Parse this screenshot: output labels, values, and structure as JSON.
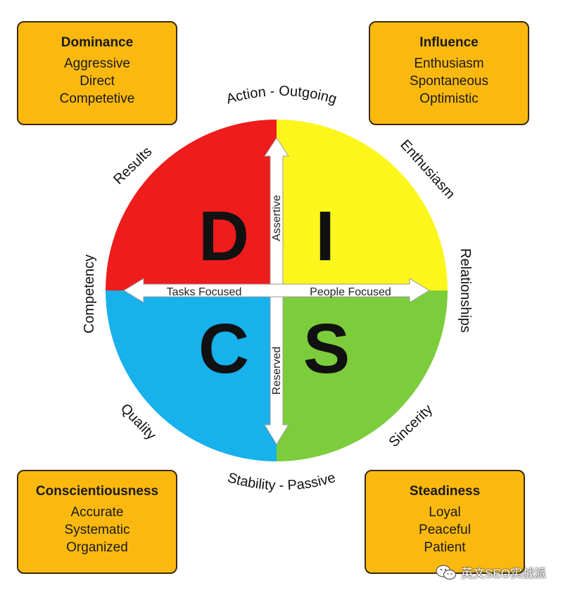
{
  "cards": {
    "dominance": {
      "title": "Dominance",
      "traits": [
        "Aggressive",
        "Direct",
        "Competetive"
      ]
    },
    "influence": {
      "title": "Influence",
      "traits": [
        "Enthusiasm",
        "Spontaneous",
        "Optimistic"
      ]
    },
    "conscientiousness": {
      "title": "Conscientiousness",
      "traits": [
        "Accurate",
        "Systematic",
        "Organized"
      ]
    },
    "steadiness": {
      "title": "Steadiness",
      "traits": [
        "Loyal",
        "Peaceful",
        "Patient"
      ]
    }
  },
  "quadrants": {
    "d": {
      "letter": "D",
      "color": "#ee1c1c"
    },
    "i": {
      "letter": "I",
      "color": "#fcf61d"
    },
    "c": {
      "letter": "C",
      "color": "#17b1ec"
    },
    "s": {
      "letter": "S",
      "color": "#7ccd3b"
    }
  },
  "axes": {
    "assertive": "Assertive",
    "reserved": "Reserved",
    "tasks": "Tasks Focused",
    "people": "People Focused"
  },
  "ring_labels": {
    "top": "Action - Outgoing",
    "bottom": "Stability - Passive",
    "results": "Results",
    "enthusiasm": "Enthusiasm",
    "competency": "Competency",
    "relationships": "Relationships",
    "quality": "Quality",
    "sincerity": "Sincerity"
  },
  "watermark": "英文SEO实战派",
  "colors": {
    "card": "#fbb90f",
    "card_border": "#3a2a10",
    "arrow": "#ffffff"
  }
}
